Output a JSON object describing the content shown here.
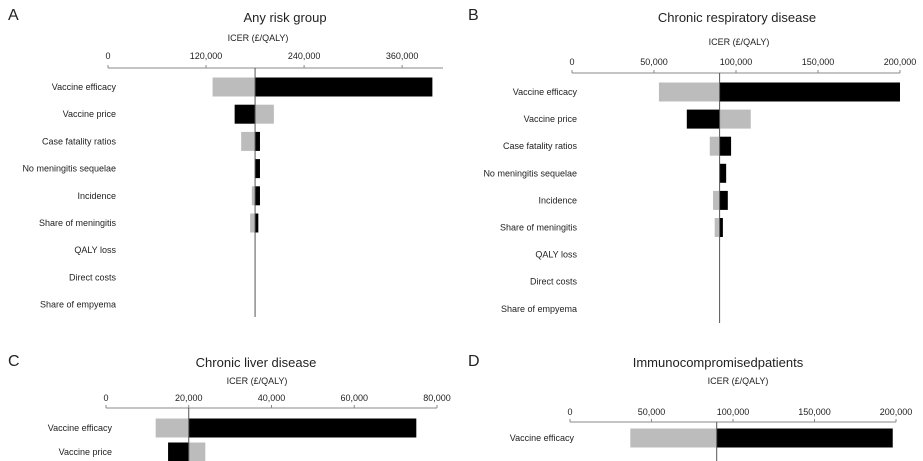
{
  "colors": {
    "low": "#bcbcbc",
    "high": "#000000",
    "axis": "#888888"
  },
  "chart_data": [
    {
      "type": "bar",
      "panel": "A",
      "title": "Any risk group",
      "xlabel": "ICER (£/QALY)",
      "ticks": [
        0,
        120000,
        240000,
        360000
      ],
      "tick_labels": [
        "0",
        "120,000",
        "240,000",
        "360,000"
      ],
      "xlim": [
        0,
        410000
      ],
      "base_case": 180000,
      "categories": [
        "Vaccine efficacy",
        "Vaccine price",
        "Case fatality ratios",
        "No meningitis sequelae",
        "Incidence",
        "Share of meningitis",
        "QALY loss",
        "Direct costs",
        "Share of empyema"
      ],
      "series": [
        {
          "values": [
            128000,
            203000,
            163000,
            180000,
            176000,
            174000,
            180000,
            180000,
            180000
          ]
        },
        {
          "values": [
            397000,
            155000,
            186000,
            186000,
            186000,
            184000,
            180000,
            180000,
            180000
          ]
        }
      ]
    },
    {
      "type": "bar",
      "panel": "B",
      "title": "Chronic respiratory  disease",
      "xlabel": "ICER (£/QALY)",
      "ticks": [
        0,
        50000,
        100000,
        150000,
        200000
      ],
      "tick_labels": [
        "0",
        "50,000",
        "100,000",
        "150,000",
        "200,000"
      ],
      "xlim": [
        0,
        200000
      ],
      "base_case": 90000,
      "categories": [
        "Vaccine efficacy",
        "Vaccine price",
        "Case fatality ratios",
        "No meningitis sequelae",
        "Incidence",
        "Share of meningitis",
        "QALY loss",
        "Direct costs",
        "Share of empyema"
      ],
      "series": [
        {
          "values": [
            53000,
            109000,
            84000,
            90000,
            86000,
            87000,
            90000,
            90000,
            90000
          ]
        },
        {
          "values": [
            200000,
            70000,
            97000,
            94000,
            95000,
            92000,
            90000,
            90000,
            90000
          ]
        }
      ]
    },
    {
      "type": "bar",
      "panel": "C",
      "title": "Chronic liver disease",
      "xlabel": "ICER (£/QALY)",
      "ticks": [
        0,
        20000,
        40000,
        60000,
        80000
      ],
      "tick_labels": [
        "0",
        "20,000",
        "40,000",
        "60,000",
        "80,000"
      ],
      "xlim": [
        0,
        80000
      ],
      "base_case": 20000,
      "categories": [
        "Vaccine efficacy",
        "Vaccine price"
      ],
      "series": [
        {
          "values": [
            12000,
            24000
          ]
        },
        {
          "values": [
            75000,
            15000
          ]
        }
      ]
    },
    {
      "type": "bar",
      "panel": "D",
      "title": "Immunocompromisedpatients",
      "xlabel": "ICER (£/QALY)",
      "ticks": [
        0,
        50000,
        100000,
        150000,
        200000
      ],
      "tick_labels": [
        "0",
        "50,000",
        "100,000",
        "150,000",
        "200,000"
      ],
      "xlim": [
        0,
        200000
      ],
      "base_case": 90000,
      "categories": [
        "Vaccine efficacy"
      ],
      "series": [
        {
          "values": [
            37000
          ]
        },
        {
          "values": [
            198000
          ]
        }
      ]
    }
  ]
}
